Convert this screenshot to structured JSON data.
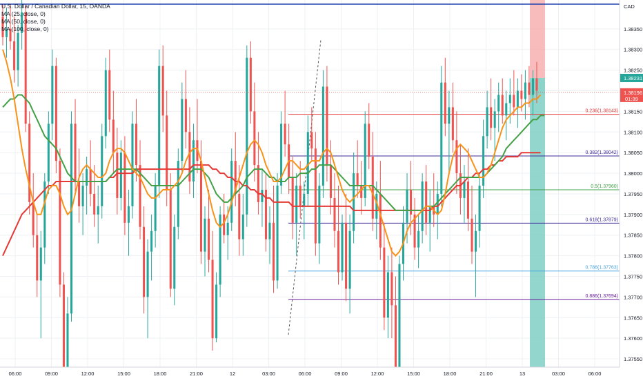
{
  "header": {
    "symbol_title": "U.S. Dollar / Canadian Dollar, 15, OANDA",
    "indicators": [
      "MA (25, close, 0)",
      "MA (50, close, 0)",
      "MA (100, close, 0)"
    ]
  },
  "price_scale": {
    "currency": "CAD",
    "ticks": [
      "1.38350",
      "1.38300",
      "1.38250",
      "1.38200",
      "1.38150",
      "1.38100",
      "1.38050",
      "1.38000",
      "1.37950",
      "1.37900",
      "1.37850",
      "1.37800",
      "1.37750",
      "1.37700",
      "1.37650",
      "1.37600",
      "1.37550"
    ],
    "current_price": "1.38231",
    "last_price": "1.38196",
    "countdown": "01:39"
  },
  "time_scale": {
    "ticks": [
      "06:00",
      "09:00",
      "12:00",
      "15:00",
      "18:00",
      "21:00",
      "12",
      "03:00",
      "06:00",
      "09:00",
      "12:00",
      "15:00",
      "18:00",
      "21:00",
      "13",
      "03:00",
      "06:00"
    ]
  },
  "fibonacci": [
    {
      "label": "0.236(1.38143)",
      "color": "#e53935"
    },
    {
      "label": "0.382(1.38042)",
      "color": "#3f2b96"
    },
    {
      "label": "0.5(1.37960)",
      "color": "#43a047"
    },
    {
      "label": "0.618(1.37879)",
      "color": "#3f2b96"
    },
    {
      "label": "0.786(1.37763)",
      "color": "#4aa3df"
    },
    {
      "label": "0.886(1.37694)",
      "color": "#6a1b9a"
    }
  ],
  "colors": {
    "up": "#26a69a",
    "down": "#ef5350",
    "ma25": "#f7931a",
    "ma50": "#43a047",
    "ma100": "#e53935",
    "top_line": "#1e40af",
    "position_loss": "#f7a6a6",
    "position_profit": "#7fcfc4"
  },
  "chart_data": {
    "type": "candlestick",
    "symbol": "U.S. Dollar / Canadian Dollar",
    "ylim": [
      1.3753,
      1.3842
    ],
    "candles": [
      [
        1.3838,
        1.3841,
        1.3831,
        1.3833
      ],
      [
        1.3833,
        1.384,
        1.3828,
        1.3835
      ],
      [
        1.3835,
        1.3841,
        1.383,
        1.3832
      ],
      [
        1.3832,
        1.3838,
        1.3822,
        1.3825
      ],
      [
        1.3825,
        1.3836,
        1.3821,
        1.3834
      ],
      [
        1.3834,
        1.3842,
        1.383,
        1.3839
      ],
      [
        1.3839,
        1.3841,
        1.381,
        1.3812
      ],
      [
        1.3812,
        1.3815,
        1.379,
        1.3793
      ],
      [
        1.3793,
        1.38,
        1.3782,
        1.3785
      ],
      [
        1.3785,
        1.379,
        1.377,
        1.3774
      ],
      [
        1.3774,
        1.3786,
        1.376,
        1.3782
      ],
      [
        1.3782,
        1.38,
        1.3778,
        1.3798
      ],
      [
        1.3798,
        1.3815,
        1.3795,
        1.3812
      ],
      [
        1.3812,
        1.383,
        1.3808,
        1.3826
      ],
      [
        1.3826,
        1.3828,
        1.38,
        1.3803
      ],
      [
        1.3803,
        1.3806,
        1.377,
        1.3773
      ],
      [
        1.3773,
        1.3776,
        1.375,
        1.3752
      ],
      [
        1.3752,
        1.377,
        1.3748,
        1.3766
      ],
      [
        1.3766,
        1.3815,
        1.3764,
        1.3812
      ],
      [
        1.3812,
        1.3818,
        1.3795,
        1.3798
      ],
      [
        1.3798,
        1.3806,
        1.3788,
        1.3792
      ],
      [
        1.3792,
        1.38,
        1.3785,
        1.3797
      ],
      [
        1.3797,
        1.3804,
        1.379,
        1.3801
      ],
      [
        1.3801,
        1.3808,
        1.3792,
        1.3795
      ],
      [
        1.3795,
        1.3802,
        1.3787,
        1.379
      ],
      [
        1.379,
        1.3797,
        1.3783,
        1.3792
      ],
      [
        1.3792,
        1.3812,
        1.3789,
        1.3809
      ],
      [
        1.3809,
        1.3828,
        1.3806,
        1.3825
      ],
      [
        1.3825,
        1.383,
        1.381,
        1.3813
      ],
      [
        1.3813,
        1.382,
        1.38,
        1.3805
      ],
      [
        1.3805,
        1.3811,
        1.379,
        1.3794
      ],
      [
        1.3794,
        1.3808,
        1.3791,
        1.3805
      ],
      [
        1.3805,
        1.3809,
        1.3785,
        1.3788
      ],
      [
        1.3788,
        1.3796,
        1.378,
        1.3792
      ],
      [
        1.3792,
        1.3815,
        1.3789,
        1.3812
      ],
      [
        1.3812,
        1.3818,
        1.3798,
        1.3802
      ],
      [
        1.3802,
        1.3808,
        1.3784,
        1.3787
      ],
      [
        1.3787,
        1.3792,
        1.3766,
        1.377
      ],
      [
        1.377,
        1.3784,
        1.376,
        1.3781
      ],
      [
        1.3781,
        1.379,
        1.3774,
        1.3786
      ],
      [
        1.3786,
        1.38,
        1.3782,
        1.3797
      ],
      [
        1.3797,
        1.383,
        1.3794,
        1.3826
      ],
      [
        1.3826,
        1.3831,
        1.381,
        1.3814
      ],
      [
        1.3814,
        1.382,
        1.3792,
        1.3796
      ],
      [
        1.3796,
        1.38,
        1.377,
        1.3772
      ],
      [
        1.3772,
        1.379,
        1.3768,
        1.3787
      ],
      [
        1.3787,
        1.3806,
        1.3784,
        1.3803
      ],
      [
        1.3803,
        1.3822,
        1.38,
        1.3818
      ],
      [
        1.3818,
        1.3825,
        1.3806,
        1.381
      ],
      [
        1.381,
        1.3816,
        1.3795,
        1.3798
      ],
      [
        1.3798,
        1.3812,
        1.3794,
        1.3808
      ],
      [
        1.3808,
        1.3818,
        1.38,
        1.3803
      ],
      [
        1.3803,
        1.3808,
        1.3778,
        1.3781
      ],
      [
        1.3781,
        1.3792,
        1.3775,
        1.3789
      ],
      [
        1.3789,
        1.3796,
        1.3776,
        1.3779
      ],
      [
        1.3779,
        1.3786,
        1.3757,
        1.376
      ],
      [
        1.376,
        1.3776,
        1.3759,
        1.3773
      ],
      [
        1.3773,
        1.3792,
        1.377,
        1.379
      ],
      [
        1.379,
        1.3795,
        1.3783,
        1.3785
      ],
      [
        1.3785,
        1.3792,
        1.3779,
        1.3788
      ],
      [
        1.3788,
        1.3806,
        1.3786,
        1.3803
      ],
      [
        1.3803,
        1.381,
        1.3792,
        1.3795
      ],
      [
        1.3795,
        1.3802,
        1.378,
        1.3784
      ],
      [
        1.3784,
        1.3795,
        1.378,
        1.379
      ],
      [
        1.379,
        1.3831,
        1.3787,
        1.3828
      ],
      [
        1.3828,
        1.3832,
        1.3812,
        1.3815
      ],
      [
        1.3815,
        1.3822,
        1.3798,
        1.3802
      ],
      [
        1.3802,
        1.381,
        1.379,
        1.3793
      ],
      [
        1.3793,
        1.3801,
        1.3787,
        1.3796
      ],
      [
        1.3796,
        1.38,
        1.3781,
        1.3784
      ],
      [
        1.3784,
        1.3792,
        1.3778,
        1.3788
      ],
      [
        1.3788,
        1.3797,
        1.3771,
        1.3774
      ],
      [
        1.3774,
        1.38,
        1.3772,
        1.3797
      ],
      [
        1.3797,
        1.3815,
        1.3795,
        1.3812
      ],
      [
        1.3812,
        1.382,
        1.3804,
        1.3807
      ],
      [
        1.3807,
        1.3812,
        1.3795,
        1.3799
      ],
      [
        1.3799,
        1.3804,
        1.3784,
        1.3788
      ],
      [
        1.3788,
        1.38,
        1.378,
        1.3797
      ],
      [
        1.3797,
        1.3803,
        1.3789,
        1.3792
      ],
      [
        1.3792,
        1.3798,
        1.3784,
        1.3795
      ],
      [
        1.3795,
        1.3814,
        1.3792,
        1.381
      ],
      [
        1.381,
        1.3816,
        1.3803,
        1.3806
      ],
      [
        1.3806,
        1.381,
        1.378,
        1.3783
      ],
      [
        1.3783,
        1.38,
        1.3778,
        1.3797
      ],
      [
        1.3797,
        1.3825,
        1.3794,
        1.3821
      ],
      [
        1.3821,
        1.3826,
        1.3798,
        1.3802
      ],
      [
        1.3802,
        1.3808,
        1.379,
        1.3794
      ],
      [
        1.3794,
        1.38,
        1.3782,
        1.3786
      ],
      [
        1.3786,
        1.3797,
        1.3773,
        1.3776
      ],
      [
        1.3776,
        1.379,
        1.3774,
        1.3788
      ],
      [
        1.3788,
        1.3795,
        1.3769,
        1.3772
      ],
      [
        1.3772,
        1.379,
        1.3766,
        1.3786
      ],
      [
        1.3786,
        1.3805,
        1.3783,
        1.38
      ],
      [
        1.38,
        1.3808,
        1.3794,
        1.3797
      ],
      [
        1.3797,
        1.3803,
        1.379,
        1.3794
      ],
      [
        1.3794,
        1.3815,
        1.3792,
        1.3812
      ],
      [
        1.3812,
        1.3817,
        1.3801,
        1.3804
      ],
      [
        1.3804,
        1.381,
        1.3786,
        1.3789
      ],
      [
        1.3789,
        1.3798,
        1.3784,
        1.3795
      ],
      [
        1.3795,
        1.3803,
        1.3779,
        1.3782
      ],
      [
        1.3782,
        1.3788,
        1.3762,
        1.3765
      ],
      [
        1.3765,
        1.378,
        1.376,
        1.3776
      ],
      [
        1.3776,
        1.3782,
        1.376,
        1.3768
      ],
      [
        1.3768,
        1.3775,
        1.375,
        1.3753
      ],
      [
        1.3753,
        1.378,
        1.3751,
        1.3778
      ],
      [
        1.3778,
        1.3792,
        1.3774,
        1.3788
      ],
      [
        1.3788,
        1.38,
        1.3783,
        1.3796
      ],
      [
        1.3796,
        1.3803,
        1.3785,
        1.379
      ],
      [
        1.379,
        1.3794,
        1.3779,
        1.3782
      ],
      [
        1.3782,
        1.379,
        1.3777,
        1.3786
      ],
      [
        1.3786,
        1.38,
        1.3783,
        1.3798
      ],
      [
        1.3798,
        1.3802,
        1.3785,
        1.3788
      ],
      [
        1.3788,
        1.3796,
        1.3781,
        1.3792
      ],
      [
        1.3792,
        1.38,
        1.3787,
        1.379
      ],
      [
        1.379,
        1.3798,
        1.3784,
        1.3795
      ],
      [
        1.3795,
        1.3826,
        1.3792,
        1.3822
      ],
      [
        1.3822,
        1.3828,
        1.3809,
        1.3812
      ],
      [
        1.3812,
        1.382,
        1.38,
        1.3816
      ],
      [
        1.3816,
        1.3822,
        1.3805,
        1.3808
      ],
      [
        1.3808,
        1.3815,
        1.3795,
        1.38
      ],
      [
        1.38,
        1.3807,
        1.379,
        1.3794
      ],
      [
        1.3794,
        1.3802,
        1.3788,
        1.3798
      ],
      [
        1.3798,
        1.3806,
        1.3786,
        1.3789
      ],
      [
        1.3789,
        1.3797,
        1.3778,
        1.3781
      ],
      [
        1.3781,
        1.379,
        1.377,
        1.3786
      ],
      [
        1.3786,
        1.38,
        1.3782,
        1.3797
      ],
      [
        1.3797,
        1.3813,
        1.3794,
        1.3809
      ],
      [
        1.3809,
        1.382,
        1.3806,
        1.3816
      ],
      [
        1.3816,
        1.3823,
        1.3808,
        1.3811
      ],
      [
        1.3811,
        1.3818,
        1.3803,
        1.3815
      ],
      [
        1.3815,
        1.3822,
        1.381,
        1.3819
      ],
      [
        1.3819,
        1.3823,
        1.3812,
        1.3814
      ],
      [
        1.3814,
        1.382,
        1.3808,
        1.3817
      ],
      [
        1.3817,
        1.3823,
        1.3812,
        1.3819
      ],
      [
        1.3819,
        1.3825,
        1.3814,
        1.3816
      ],
      [
        1.3816,
        1.3823,
        1.3811,
        1.382
      ],
      [
        1.382,
        1.3824,
        1.3815,
        1.3818
      ],
      [
        1.3818,
        1.3825,
        1.3813,
        1.3822
      ],
      [
        1.3822,
        1.3826,
        1.3816,
        1.3819
      ],
      [
        1.3819,
        1.3825,
        1.3814,
        1.3823
      ],
      [
        1.3823,
        1.3827,
        1.3817,
        1.382
      ]
    ],
    "ma25": [
      1.383,
      1.3827,
      1.3823,
      1.3818,
      1.3812,
      1.3806,
      1.3801,
      1.3797,
      1.3793,
      1.379,
      1.379,
      1.3793,
      1.3796,
      1.3797,
      1.3797,
      1.3795,
      1.3792,
      1.379,
      1.3791,
      1.3795,
      1.3799,
      1.3801,
      1.3802,
      1.3801,
      1.38,
      1.3799,
      1.3799,
      1.38,
      1.3803,
      1.3805,
      1.3806,
      1.3806,
      1.3805,
      1.3803,
      1.3801,
      1.38,
      1.3799,
      1.3797,
      1.3795,
      1.3794,
      1.3794,
      1.3795,
      1.3796,
      1.3796,
      1.3796,
      1.3797,
      1.3798,
      1.38,
      1.3803,
      1.3805,
      1.3806,
      1.3806,
      1.3803,
      1.3799,
      1.3795,
      1.3791,
      1.3788,
      1.3787,
      1.3788,
      1.379,
      1.3793,
      1.3796,
      1.3799,
      1.3802,
      1.3805,
      1.3807,
      1.3808,
      1.3807,
      1.3805,
      1.3802,
      1.38,
      1.3798,
      1.3798,
      1.3799,
      1.3801,
      1.3803,
      1.3803,
      1.3802,
      1.3801,
      1.3801,
      1.3802,
      1.3803,
      1.3803,
      1.3803,
      1.3805,
      1.3806,
      1.3805,
      1.3802,
      1.3799,
      1.3796,
      1.3794,
      1.3793,
      1.3794,
      1.3795,
      1.3796,
      1.3797,
      1.3797,
      1.3795,
      1.3793,
      1.379,
      1.3787,
      1.3784,
      1.3781,
      1.378,
      1.3781,
      1.3783,
      1.3786,
      1.3788,
      1.3789,
      1.379,
      1.3791,
      1.3792,
      1.3792,
      1.3791,
      1.379,
      1.3791,
      1.3795,
      1.38,
      1.3804,
      1.3806,
      1.3807,
      1.3806,
      1.3805,
      1.3803,
      1.3801,
      1.3799,
      1.3799,
      1.38,
      1.3802,
      1.3805,
      1.3808,
      1.3811,
      1.3813,
      1.3814,
      1.3815,
      1.3816,
      1.3816,
      1.3817,
      1.3817,
      1.3818,
      1.3818,
      1.3819
    ],
    "ma50": [
      1.3816,
      1.3817,
      1.3818,
      1.3818,
      1.3819,
      1.3819,
      1.3818,
      1.3817,
      1.3815,
      1.3813,
      1.3811,
      1.3809,
      1.3808,
      1.3807,
      1.3806,
      1.3804,
      1.3802,
      1.38,
      1.3799,
      1.3798,
      1.3798,
      1.3798,
      1.3798,
      1.3798,
      1.3798,
      1.3798,
      1.3798,
      1.3798,
      1.3799,
      1.38,
      1.3801,
      1.3801,
      1.3801,
      1.3801,
      1.3801,
      1.3801,
      1.38,
      1.3799,
      1.3798,
      1.3797,
      1.3797,
      1.3797,
      1.3797,
      1.3797,
      1.3797,
      1.3797,
      1.3797,
      1.3798,
      1.3799,
      1.38,
      1.3801,
      1.3801,
      1.3801,
      1.38,
      1.3799,
      1.3797,
      1.3795,
      1.3794,
      1.3793,
      1.3793,
      1.3794,
      1.3795,
      1.3796,
      1.3797,
      1.3799,
      1.38,
      1.3801,
      1.3801,
      1.3801,
      1.38,
      1.3799,
      1.3799,
      1.3798,
      1.3798,
      1.3798,
      1.3799,
      1.3799,
      1.3799,
      1.38,
      1.38,
      1.38,
      1.3801,
      1.3801,
      1.3802,
      1.3802,
      1.3802,
      1.3802,
      1.3801,
      1.38,
      1.3799,
      1.3798,
      1.3797,
      1.3797,
      1.3797,
      1.3797,
      1.3797,
      1.3797,
      1.3797,
      1.3796,
      1.3795,
      1.3794,
      1.3793,
      1.3792,
      1.3791,
      1.3791,
      1.3791,
      1.3791,
      1.3791,
      1.3791,
      1.3791,
      1.3791,
      1.3792,
      1.3792,
      1.3792,
      1.3793,
      1.3794,
      1.3795,
      1.3796,
      1.3797,
      1.3798,
      1.3799,
      1.3799,
      1.3799,
      1.3799,
      1.3799,
      1.3799,
      1.3799,
      1.38,
      1.3801,
      1.3802,
      1.3803,
      1.3804,
      1.3806,
      1.3807,
      1.3808,
      1.3809,
      1.381,
      1.3811,
      1.3812,
      1.3813,
      1.3813,
      1.3814,
      1.3814
    ],
    "ma100": [
      1.378,
      1.3782,
      1.3784,
      1.3786,
      1.3788,
      1.379,
      1.3791,
      1.3792,
      1.3793,
      1.3794,
      1.3795,
      1.3796,
      1.3797,
      1.3797,
      1.3798,
      1.3798,
      1.3798,
      1.3798,
      1.3798,
      1.3798,
      1.3798,
      1.3798,
      1.3798,
      1.3798,
      1.3798,
      1.3798,
      1.3798,
      1.3798,
      1.3799,
      1.3799,
      1.38,
      1.38,
      1.38,
      1.38,
      1.38,
      1.3801,
      1.3801,
      1.3801,
      1.3801,
      1.3801,
      1.3801,
      1.3801,
      1.3801,
      1.3801,
      1.3801,
      1.3801,
      1.3801,
      1.3801,
      1.3801,
      1.3801,
      1.3802,
      1.3802,
      1.3802,
      1.3802,
      1.3802,
      1.3801,
      1.3801,
      1.38,
      1.38,
      1.3799,
      1.3799,
      1.3798,
      1.3798,
      1.3797,
      1.3797,
      1.3796,
      1.3796,
      1.3795,
      1.3795,
      1.3794,
      1.3794,
      1.3793,
      1.3793,
      1.3793,
      1.3793,
      1.3793,
      1.3792,
      1.3792,
      1.3792,
      1.3792,
      1.3792,
      1.3792,
      1.3792,
      1.3792,
      1.3792,
      1.3792,
      1.3792,
      1.3792,
      1.3792,
      1.3792,
      1.3792,
      1.3792,
      1.3791,
      1.3791,
      1.3791,
      1.3791,
      1.3791,
      1.3791,
      1.3791,
      1.3791,
      1.3791,
      1.3791,
      1.3791,
      1.3791,
      1.3791,
      1.3791,
      1.3791,
      1.3791,
      1.3791,
      1.3791,
      1.3791,
      1.3791,
      1.3791,
      1.3792,
      1.3792,
      1.3793,
      1.3794,
      1.3795,
      1.3796,
      1.3797,
      1.3797,
      1.3798,
      1.3799,
      1.3799,
      1.38,
      1.38,
      1.3801,
      1.3801,
      1.3802,
      1.3802,
      1.3803,
      1.3803,
      1.3804,
      1.3804,
      1.3804,
      1.3804,
      1.3805,
      1.3805,
      1.3805,
      1.3805,
      1.3805,
      1.3805
    ]
  }
}
